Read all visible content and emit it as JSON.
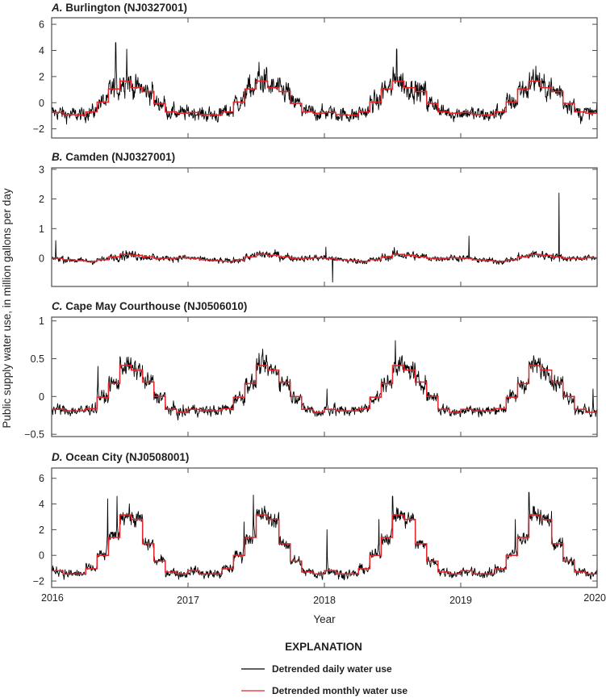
{
  "chart_data": {
    "type": "line",
    "xlabel": "Year",
    "ylabel": "Public supply water use, in million gallons per day",
    "xlim": [
      2016,
      2020
    ],
    "x_ticks": [
      "2016",
      "2017",
      "2018",
      "2019",
      "2020"
    ],
    "grid": false,
    "legend": {
      "title": "EXPLANATION",
      "placement": "bottom-center",
      "entries": [
        {
          "label": "Detrended daily water use",
          "color": "#000000"
        },
        {
          "label": "Detrended monthly water use",
          "color": "#e3242b"
        }
      ]
    },
    "panels": [
      {
        "letter": "A.",
        "title": "Burlington (NJ0327001)",
        "ylim": [
          -2.7,
          6.5
        ],
        "y_ticks": [
          6,
          4,
          2,
          0,
          -2
        ],
        "y_tick_labels": [
          "6",
          "4",
          "2",
          "0",
          "−2"
        ],
        "monthly_pattern": [
          -0.75,
          -0.9,
          -0.95,
          -0.7,
          0.05,
          1.05,
          1.65,
          1.15,
          0.85,
          -0.05,
          -0.7,
          -0.8
        ],
        "daily_noise": 0.45,
        "daily_peak_max": 4.6,
        "spikes": [
          {
            "year_frac": 2016.47,
            "value": 4.6
          },
          {
            "year_frac": 2016.55,
            "value": 4.1
          },
          {
            "year_frac": 2017.52,
            "value": 3.1
          },
          {
            "year_frac": 2018.53,
            "value": 4.1
          },
          {
            "year_frac": 2019.55,
            "value": 2.8
          },
          {
            "year_frac": 2019.88,
            "value": -1.6
          }
        ]
      },
      {
        "letter": "B.",
        "title": "Camden (NJ0327001)",
        "ylim": [
          -0.95,
          3.05
        ],
        "y_ticks": [
          3,
          2,
          1,
          0
        ],
        "y_tick_labels": [
          "3",
          "2",
          "1",
          "0"
        ],
        "monthly_pattern": [
          0.0,
          -0.05,
          -0.08,
          -0.1,
          -0.05,
          0.05,
          0.13,
          0.1,
          0.05,
          0.0,
          0.0,
          0.02
        ],
        "daily_noise": 0.08,
        "spikes": [
          {
            "year_frac": 2016.03,
            "value": 0.6
          },
          {
            "year_frac": 2018.01,
            "value": 0.38
          },
          {
            "year_frac": 2018.06,
            "value": -0.8
          },
          {
            "year_frac": 2019.06,
            "value": 0.75
          },
          {
            "year_frac": 2019.72,
            "value": 2.2
          }
        ]
      },
      {
        "letter": "C.",
        "title": "Cape May Courthouse (NJ0506010)",
        "ylim": [
          -0.53,
          1.05
        ],
        "y_ticks": [
          1,
          0.5,
          0,
          -0.5
        ],
        "y_tick_labels": [
          "1",
          "0.5",
          "0",
          "−0.5"
        ],
        "monthly_pattern": [
          -0.17,
          -0.19,
          -0.19,
          -0.16,
          -0.01,
          0.17,
          0.41,
          0.35,
          0.19,
          0.0,
          -0.17,
          -0.21
        ],
        "daily_noise": 0.06,
        "spikes": [
          {
            "year_frac": 2016.34,
            "value": 0.4
          },
          {
            "year_frac": 2018.02,
            "value": 0.1
          },
          {
            "year_frac": 2018.52,
            "value": 0.74
          },
          {
            "year_frac": 2019.97,
            "value": 0.1
          }
        ]
      },
      {
        "letter": "D.",
        "title": "Ocean City (NJ0508001)",
        "ylim": [
          -2.5,
          6.8
        ],
        "y_ticks": [
          6,
          4,
          2,
          0,
          -2
        ],
        "y_tick_labels": [
          "6",
          "4",
          "2",
          "0",
          "−2"
        ],
        "monthly_pattern": [
          -1.2,
          -1.45,
          -1.45,
          -1.05,
          0.0,
          1.4,
          3.15,
          2.8,
          0.9,
          -0.45,
          -1.3,
          -1.45
        ],
        "daily_noise": 0.3,
        "spikes": [
          {
            "year_frac": 2016.41,
            "value": 4.4
          },
          {
            "year_frac": 2016.48,
            "value": 4.6
          },
          {
            "year_frac": 2017.41,
            "value": 2.6
          },
          {
            "year_frac": 2017.48,
            "value": 4.7
          },
          {
            "year_frac": 2018.02,
            "value": 2.0
          },
          {
            "year_frac": 2018.4,
            "value": 2.8
          },
          {
            "year_frac": 2018.5,
            "value": 4.6
          },
          {
            "year_frac": 2019.4,
            "value": 2.8
          },
          {
            "year_frac": 2019.5,
            "value": 4.9
          }
        ]
      }
    ]
  }
}
